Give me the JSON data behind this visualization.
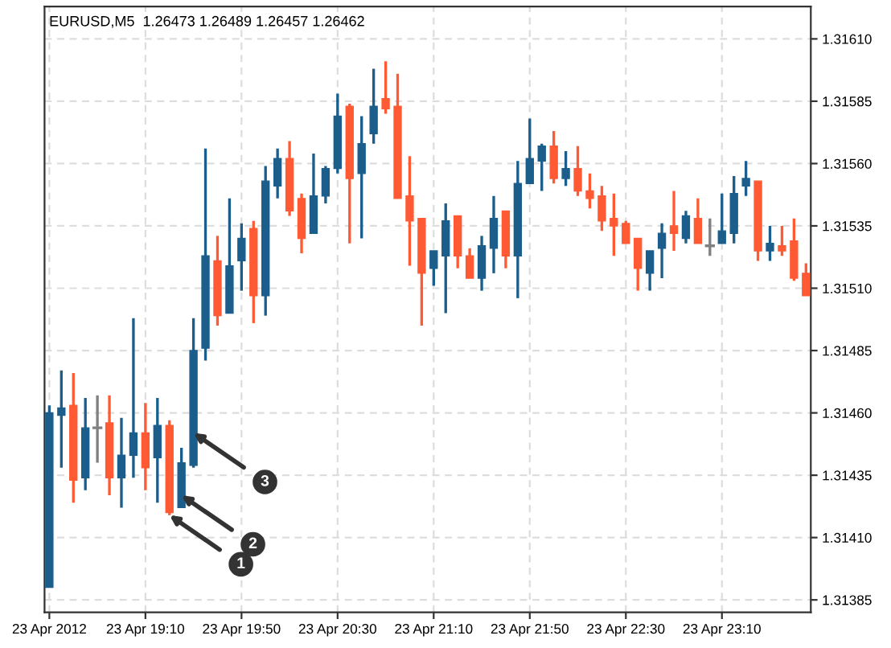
{
  "chart_data": {
    "type": "candlestick",
    "title": "EURUSD,M5  1.26473 1.26489 1.26457 1.26462",
    "x": [
      "2012-04-23T18:30",
      "2012-04-23T18:35",
      "2012-04-23T18:40",
      "2012-04-23T18:45",
      "2012-04-23T18:50",
      "2012-04-23T18:55",
      "2012-04-23T19:00",
      "2012-04-23T19:05",
      "2012-04-23T19:10",
      "2012-04-23T19:15",
      "2012-04-23T19:20",
      "2012-04-23T19:25",
      "2012-04-23T19:30",
      "2012-04-23T19:35",
      "2012-04-23T19:40",
      "2012-04-23T19:45",
      "2012-04-23T19:50",
      "2012-04-23T19:55",
      "2012-04-23T20:00",
      "2012-04-23T20:05",
      "2012-04-23T20:10",
      "2012-04-23T20:15",
      "2012-04-23T20:20",
      "2012-04-23T20:25",
      "2012-04-23T20:30",
      "2012-04-23T20:35",
      "2012-04-23T20:40",
      "2012-04-23T20:45",
      "2012-04-23T20:50",
      "2012-04-23T20:55",
      "2012-04-23T21:00",
      "2012-04-23T21:05",
      "2012-04-23T21:10",
      "2012-04-23T21:15",
      "2012-04-23T21:20",
      "2012-04-23T21:25",
      "2012-04-23T21:30",
      "2012-04-23T21:35",
      "2012-04-23T21:40",
      "2012-04-23T21:45",
      "2012-04-23T21:50",
      "2012-04-23T21:55",
      "2012-04-23T22:00",
      "2012-04-23T22:05",
      "2012-04-23T22:10",
      "2012-04-23T22:15",
      "2012-04-23T22:20",
      "2012-04-23T22:25",
      "2012-04-23T22:30",
      "2012-04-23T22:35",
      "2012-04-23T22:40",
      "2012-04-23T22:45",
      "2012-04-23T22:50",
      "2012-04-23T22:55",
      "2012-04-23T23:00",
      "2012-04-23T23:05",
      "2012-04-23T23:10",
      "2012-04-23T23:15",
      "2012-04-23T23:20",
      "2012-04-23T23:25",
      "2012-04-23T23:30",
      "2012-04-23T23:35",
      "2012-04-23T23:40",
      "2012-04-23T23:45"
    ],
    "ohlc": [
      [
        1.3139,
        1.31463,
        1.3139,
        1.3146
      ],
      [
        1.31459,
        1.31477,
        1.31438,
        1.31462
      ],
      [
        1.31463,
        1.31476,
        1.31424,
        1.31433
      ],
      [
        1.31434,
        1.31466,
        1.31429,
        1.31454
      ],
      [
        1.31454,
        1.31467,
        1.3144,
        1.31454
      ],
      [
        1.31456,
        1.31467,
        1.31427,
        1.31434
      ],
      [
        1.31434,
        1.31458,
        1.31422,
        1.31443
      ],
      [
        1.31443,
        1.31498,
        1.31434,
        1.31452
      ],
      [
        1.31452,
        1.31464,
        1.31429,
        1.31438
      ],
      [
        1.31442,
        1.31466,
        1.31424,
        1.31455
      ],
      [
        1.31455,
        1.31457,
        1.31419,
        1.3142
      ],
      [
        1.31422,
        1.31446,
        1.31422,
        1.3144
      ],
      [
        1.31439,
        1.31498,
        1.31438,
        1.31485
      ],
      [
        1.31486,
        1.31566,
        1.31481,
        1.31523
      ],
      [
        1.31521,
        1.31531,
        1.31495,
        1.31499
      ],
      [
        1.315,
        1.31546,
        1.315,
        1.31519
      ],
      [
        1.31521,
        1.31536,
        1.31509,
        1.3153
      ],
      [
        1.31534,
        1.31537,
        1.31496,
        1.31507
      ],
      [
        1.31507,
        1.31559,
        1.31499,
        1.31553
      ],
      [
        1.31551,
        1.31566,
        1.31546,
        1.31562
      ],
      [
        1.31562,
        1.31569,
        1.31539,
        1.31541
      ],
      [
        1.31546,
        1.31548,
        1.31524,
        1.3153
      ],
      [
        1.31532,
        1.31564,
        1.31532,
        1.31547
      ],
      [
        1.31547,
        1.31559,
        1.31544,
        1.31558
      ],
      [
        1.31558,
        1.31588,
        1.31556,
        1.31579
      ],
      [
        1.31583,
        1.31584,
        1.31528,
        1.31554
      ],
      [
        1.31556,
        1.31579,
        1.3153,
        1.31568
      ],
      [
        1.31572,
        1.31598,
        1.31568,
        1.31583
      ],
      [
        1.31586,
        1.31601,
        1.3158,
        1.31582
      ],
      [
        1.31583,
        1.31596,
        1.31546,
        1.31546
      ],
      [
        1.31547,
        1.31563,
        1.31519,
        1.31537
      ],
      [
        1.31538,
        1.31538,
        1.31495,
        1.31516
      ],
      [
        1.31518,
        1.31525,
        1.31511,
        1.31525
      ],
      [
        1.31523,
        1.31544,
        1.315,
        1.31537
      ],
      [
        1.31539,
        1.31539,
        1.31518,
        1.31523
      ],
      [
        1.31523,
        1.31526,
        1.31514,
        1.31514
      ],
      [
        1.31514,
        1.31531,
        1.31509,
        1.31527
      ],
      [
        1.31526,
        1.31547,
        1.31516,
        1.31538
      ],
      [
        1.31541,
        1.31541,
        1.31518,
        1.31523
      ],
      [
        1.31523,
        1.31561,
        1.31506,
        1.31552
      ],
      [
        1.31552,
        1.31578,
        1.31552,
        1.31562
      ],
      [
        1.31561,
        1.31568,
        1.31549,
        1.31567
      ],
      [
        1.31567,
        1.31573,
        1.31552,
        1.31554
      ],
      [
        1.31554,
        1.31565,
        1.31551,
        1.31558
      ],
      [
        1.31558,
        1.31567,
        1.31547,
        1.31549
      ],
      [
        1.31549,
        1.31556,
        1.31542,
        1.31546
      ],
      [
        1.31547,
        1.31551,
        1.31533,
        1.31537
      ],
      [
        1.31538,
        1.31548,
        1.31523,
        1.31535
      ],
      [
        1.31536,
        1.31537,
        1.31528,
        1.31528
      ],
      [
        1.3153,
        1.3153,
        1.31509,
        1.31518
      ],
      [
        1.31516,
        1.31525,
        1.31509,
        1.31525
      ],
      [
        1.31526,
        1.31536,
        1.31514,
        1.31532
      ],
      [
        1.31535,
        1.31549,
        1.31525,
        1.31532
      ],
      [
        1.3153,
        1.31541,
        1.31528,
        1.31539
      ],
      [
        1.31538,
        1.31546,
        1.31528,
        1.31528
      ],
      [
        1.31527,
        1.31538,
        1.31523,
        1.31527
      ],
      [
        1.31528,
        1.31548,
        1.31528,
        1.31533
      ],
      [
        1.31532,
        1.31555,
        1.31528,
        1.31548
      ],
      [
        1.31551,
        1.31561,
        1.31547,
        1.31554
      ],
      [
        1.31553,
        1.31553,
        1.31521,
        1.31525
      ],
      [
        1.31525,
        1.31535,
        1.31521,
        1.31528
      ],
      [
        1.31527,
        1.31535,
        1.31523,
        1.31525
      ],
      [
        1.31529,
        1.31538,
        1.31513,
        1.31514
      ],
      [
        1.31516,
        1.3152,
        1.31507,
        1.31507
      ]
    ],
    "colors": [
      "#1b5e8c",
      "#1b5e8c",
      "#ff5a33",
      "#1b5e8c",
      "#808080",
      "#ff5a33",
      "#1b5e8c",
      "#1b5e8c",
      "#ff5a33",
      "#1b5e8c",
      "#ff5a33",
      "#1b5e8c",
      "#1b5e8c",
      "#1b5e8c",
      "#ff5a33",
      "#1b5e8c",
      "#1b5e8c",
      "#ff5a33",
      "#1b5e8c",
      "#1b5e8c",
      "#ff5a33",
      "#ff5a33",
      "#1b5e8c",
      "#1b5e8c",
      "#1b5e8c",
      "#ff5a33",
      "#1b5e8c",
      "#1b5e8c",
      "#ff5a33",
      "#ff5a33",
      "#ff5a33",
      "#ff5a33",
      "#1b5e8c",
      "#1b5e8c",
      "#ff5a33",
      "#ff5a33",
      "#1b5e8c",
      "#1b5e8c",
      "#ff5a33",
      "#1b5e8c",
      "#1b5e8c",
      "#1b5e8c",
      "#ff5a33",
      "#1b5e8c",
      "#ff5a33",
      "#ff5a33",
      "#ff5a33",
      "#ff5a33",
      "#ff5a33",
      "#ff5a33",
      "#1b5e8c",
      "#1b5e8c",
      "#ff5a33",
      "#1b5e8c",
      "#ff5a33",
      "#808080",
      "#1b5e8c",
      "#1b5e8c",
      "#1b5e8c",
      "#ff5a33",
      "#1b5e8c",
      "#ff5a33",
      "#ff5a33",
      "#ff5a33"
    ],
    "xlim": [
      "2012-04-23T18:28",
      "2012-04-23T23:47"
    ],
    "xticks": [
      {
        "value": "2012-04-23T18:30",
        "label": "23 Apr 2012"
      },
      {
        "value": "2012-04-23T19:10",
        "label": "23 Apr 19:10"
      },
      {
        "value": "2012-04-23T19:50",
        "label": "23 Apr 19:50"
      },
      {
        "value": "2012-04-23T20:30",
        "label": "23 Apr 20:30"
      },
      {
        "value": "2012-04-23T21:10",
        "label": "23 Apr 21:10"
      },
      {
        "value": "2012-04-23T21:50",
        "label": "23 Apr 21:50"
      },
      {
        "value": "2012-04-23T22:30",
        "label": "23 Apr 22:30"
      },
      {
        "value": "2012-04-23T23:10",
        "label": "23 Apr 23:10"
      }
    ],
    "ylim": [
      1.3138,
      1.31623
    ],
    "yticks": [
      {
        "value": 1.31385,
        "label": "1.31385"
      },
      {
        "value": 1.3141,
        "label": "1.31410"
      },
      {
        "value": 1.31435,
        "label": "1.31435"
      },
      {
        "value": 1.3146,
        "label": "1.31460"
      },
      {
        "value": 1.31485,
        "label": "1.31485"
      },
      {
        "value": 1.3151,
        "label": "1.31510"
      },
      {
        "value": 1.31535,
        "label": "1.31535"
      },
      {
        "value": 1.3156,
        "label": "1.31560"
      },
      {
        "value": 1.31585,
        "label": "1.31585"
      },
      {
        "value": 1.3161,
        "label": "1.31610"
      }
    ],
    "grid": true,
    "annotations": [
      {
        "text": "1",
        "x": "2012-04-23T19:20",
        "y": 1.31419
      },
      {
        "text": "2",
        "x": "2012-04-23T19:25",
        "y": 1.31427
      },
      {
        "text": "3",
        "x": "2012-04-23T19:30",
        "y": 1.31452
      }
    ]
  }
}
